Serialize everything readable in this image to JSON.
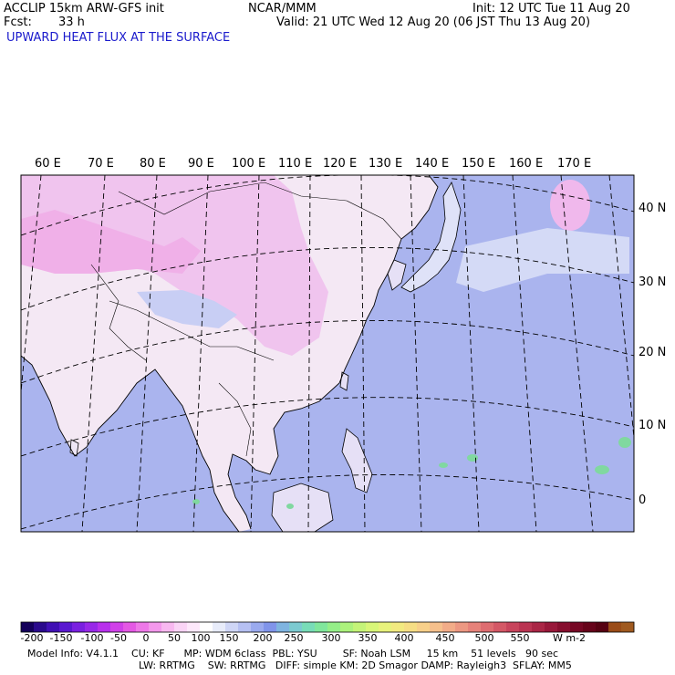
{
  "header": {
    "model": "ACCLIP 15km ARW-GFS init",
    "fcst_label": "Fcst:",
    "fcst_value": "33 h",
    "org": "NCAR/MMM",
    "init": "Init: 12 UTC Tue 11 Aug 20",
    "valid": "Valid: 21 UTC Wed 12 Aug 20 (06 JST Thu 13 Aug 20)",
    "field": "UPWARD HEAT FLUX AT THE SURFACE"
  },
  "map": {
    "lon_labels": [
      "60 E",
      "70 E",
      "80 E",
      "90 E",
      "100 E",
      "110 E",
      "120 E",
      "130 E",
      "140 E",
      "150 E",
      "160 E",
      "170 E"
    ],
    "lat_labels": [
      "40 N",
      "30 N",
      "20 N",
      "10 N",
      "0"
    ],
    "colors": {
      "ocean": "#aab4ee",
      "land_light": "#f4e8f4",
      "land_pink": "#f0b8ec",
      "coast": "#000000",
      "grid": "#000000"
    }
  },
  "colorbar": {
    "tick_labels": [
      "-200",
      "-150",
      "-100",
      "-50",
      "0",
      "50",
      "100",
      "150",
      "200",
      "250",
      "300",
      "350",
      "400",
      "450",
      "500",
      "550"
    ],
    "unit": "W m-2",
    "colors": [
      "#14005a",
      "#2a0a8c",
      "#4010b4",
      "#5a18d0",
      "#7a20e0",
      "#9828e8",
      "#b830ec",
      "#d040e8",
      "#e458e4",
      "#ee78e8",
      "#f498ec",
      "#f8b8f0",
      "#fad4f6",
      "#fde8fb",
      "#ffffff",
      "#e8ecfa",
      "#cfd6f6",
      "#b6c0f2",
      "#9aaaee",
      "#8094ea",
      "#7fb4e0",
      "#7ccad0",
      "#78dcb8",
      "#80e69c",
      "#94ee88",
      "#acf27c",
      "#c4f478",
      "#d8f678",
      "#e8f27c",
      "#f2ea80",
      "#f6de84",
      "#f8d08a",
      "#f6c08c",
      "#f2ac88",
      "#ec9882",
      "#e6827a",
      "#de6c70",
      "#d45866",
      "#c8445c",
      "#ba3452",
      "#aa2646",
      "#98183a",
      "#860e2e",
      "#760824",
      "#66041a",
      "#560212",
      "#9a4c18",
      "#a05a20"
    ]
  },
  "footer": {
    "line1": "Model Info: V4.1.1    CU: KF      MP: WDM 6class  PBL: YSU        SF: Noah LSM     15 km    51 levels   90 sec",
    "line2": "LW: RRTMG    SW: RRTMG   DIFF: simple KM: 2D Smagor DAMP: Rayleigh3  SFLAY: MM5"
  }
}
